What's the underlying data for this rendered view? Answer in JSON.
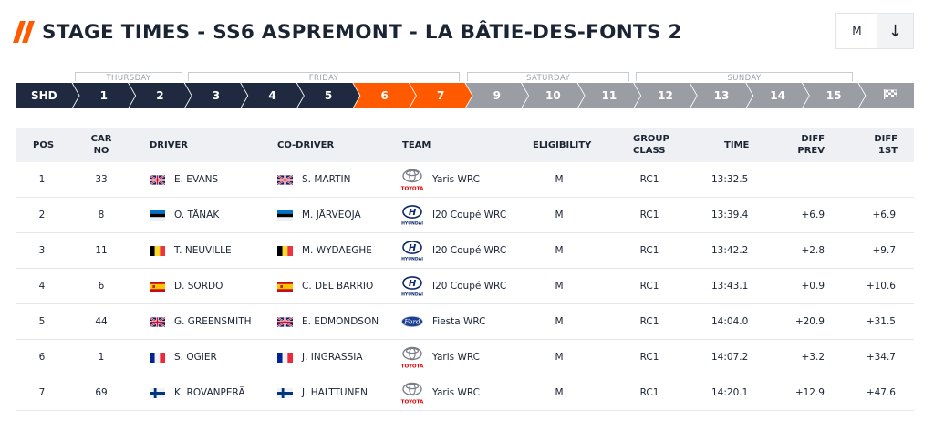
{
  "page_title": "STAGE TIMES - SS6 ASPREMONT - LA BÂTIE-DES-FONTS 2",
  "class_filter": {
    "value": "M",
    "button_icon": "arrow-down-icon"
  },
  "colors": {
    "navy": "#1f2a40",
    "orange": "#ff5a00",
    "grey": "#9a9da3",
    "brand": "#ff5a00"
  },
  "days": [
    {
      "label": "THURSDAY"
    },
    {
      "label": "FRIDAY"
    },
    {
      "label": "SATURDAY"
    },
    {
      "label": "SUNDAY"
    }
  ],
  "stages": [
    {
      "label": "SHD",
      "state": "done"
    },
    {
      "label": "1",
      "state": "done"
    },
    {
      "label": "2",
      "state": "done"
    },
    {
      "label": "3",
      "state": "done"
    },
    {
      "label": "4",
      "state": "done"
    },
    {
      "label": "5",
      "state": "done"
    },
    {
      "label": "6",
      "state": "active"
    },
    {
      "label": "7",
      "state": "active"
    },
    {
      "label": "9",
      "state": "upcoming"
    },
    {
      "label": "10",
      "state": "upcoming"
    },
    {
      "label": "11",
      "state": "upcoming"
    },
    {
      "label": "12",
      "state": "upcoming"
    },
    {
      "label": "13",
      "state": "upcoming"
    },
    {
      "label": "14",
      "state": "upcoming"
    },
    {
      "label": "15",
      "state": "upcoming"
    },
    {
      "label": "",
      "state": "upcoming",
      "icon": "finish-flag-icon"
    }
  ],
  "table": {
    "headers": {
      "pos": "POS",
      "car_no": [
        "CAR",
        "NO"
      ],
      "driver": "DRIVER",
      "codriver": "CO-DRIVER",
      "team": "TEAM",
      "eligibility": "ELIGIBILITY",
      "group_class": [
        "GROUP",
        "CLASS"
      ],
      "time": "TIME",
      "diff_prev": [
        "DIFF",
        "PREV"
      ],
      "diff_1st": [
        "DIFF",
        "1ST"
      ]
    },
    "rows": [
      {
        "pos": "1",
        "car_no": "33",
        "driver": "E. EVANS",
        "driver_flag": "gb-flag-icon",
        "codriver": "S. MARTIN",
        "codriver_flag": "gb-flag-icon",
        "team": "Yaris WRC",
        "team_logo": "toyota-logo",
        "eligibility": "M",
        "group_class": "RC1",
        "time": "13:32.5",
        "diff_prev": "",
        "diff_1st": ""
      },
      {
        "pos": "2",
        "car_no": "8",
        "driver": "O. TÄNAK",
        "driver_flag": "ee-flag-icon",
        "codriver": "M. JÄRVEOJA",
        "codriver_flag": "ee-flag-icon",
        "team": "I20 Coupé WRC",
        "team_logo": "hyundai-logo",
        "eligibility": "M",
        "group_class": "RC1",
        "time": "13:39.4",
        "diff_prev": "+6.9",
        "diff_1st": "+6.9"
      },
      {
        "pos": "3",
        "car_no": "11",
        "driver": "T. NEUVILLE",
        "driver_flag": "be-flag-icon",
        "codriver": "M. WYDAEGHE",
        "codriver_flag": "be-flag-icon",
        "team": "I20 Coupé WRC",
        "team_logo": "hyundai-logo",
        "eligibility": "M",
        "group_class": "RC1",
        "time": "13:42.2",
        "diff_prev": "+2.8",
        "diff_1st": "+9.7"
      },
      {
        "pos": "4",
        "car_no": "6",
        "driver": "D. SORDO",
        "driver_flag": "es-flag-icon",
        "codriver": "C. DEL BARRIO",
        "codriver_flag": "es-flag-icon",
        "team": "I20 Coupé WRC",
        "team_logo": "hyundai-logo",
        "eligibility": "M",
        "group_class": "RC1",
        "time": "13:43.1",
        "diff_prev": "+0.9",
        "diff_1st": "+10.6"
      },
      {
        "pos": "5",
        "car_no": "44",
        "driver": "G. GREENSMITH",
        "driver_flag": "gb-flag-icon",
        "codriver": "E. EDMONDSON",
        "codriver_flag": "gb-flag-icon",
        "team": "Fiesta WRC",
        "team_logo": "ford-logo",
        "eligibility": "M",
        "group_class": "RC1",
        "time": "14:04.0",
        "diff_prev": "+20.9",
        "diff_1st": "+31.5"
      },
      {
        "pos": "6",
        "car_no": "1",
        "driver": "S. OGIER",
        "driver_flag": "fr-flag-icon",
        "codriver": "J. INGRASSIA",
        "codriver_flag": "fr-flag-icon",
        "team": "Yaris WRC",
        "team_logo": "toyota-logo",
        "eligibility": "M",
        "group_class": "RC1",
        "time": "14:07.2",
        "diff_prev": "+3.2",
        "diff_1st": "+34.7"
      },
      {
        "pos": "7",
        "car_no": "69",
        "driver": "K. ROVANPERÄ",
        "driver_flag": "fi-flag-icon",
        "codriver": "J. HALTTUNEN",
        "codriver_flag": "fi-flag-icon",
        "team": "Yaris WRC",
        "team_logo": "toyota-logo",
        "eligibility": "M",
        "group_class": "RC1",
        "time": "14:20.1",
        "diff_prev": "+12.9",
        "diff_1st": "+47.6"
      }
    ]
  }
}
